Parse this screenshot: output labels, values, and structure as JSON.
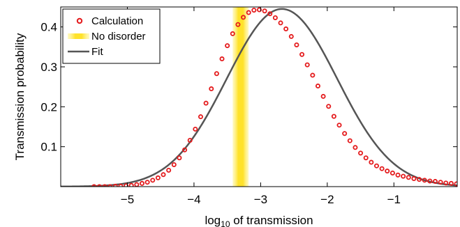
{
  "chart_data": {
    "type": "scatter",
    "xlabel_base": "log",
    "xlabel_sub": "10",
    "xlabel_rest": " of transmission",
    "ylabel": "Transmission probability",
    "xlim": [
      -6.0,
      -0.05
    ],
    "ylim": [
      0,
      0.45
    ],
    "xticks": [
      -5,
      -4,
      -3,
      -2,
      -1
    ],
    "xtick_labels": [
      "−5",
      "−4",
      "−3",
      "−2",
      "−1"
    ],
    "yticks": [
      0.1,
      0.2,
      0.3,
      0.4
    ],
    "ytick_labels": [
      "0.1",
      "0.2",
      "0.3",
      "0.4"
    ],
    "legend_position": "top-left",
    "legend": [
      "Calculation",
      "No disorder",
      "Fit"
    ],
    "no_disorder_band": {
      "x_center": -3.3,
      "x_halfwidth": 0.12
    },
    "fit": {
      "type": "gaussian",
      "amplitude": 0.445,
      "mean": -2.68,
      "sigma": 0.83
    },
    "calculation": {
      "x": [
        -5.5,
        -5.42,
        -5.34,
        -5.26,
        -5.18,
        -5.1,
        -5.02,
        -4.94,
        -4.86,
        -4.78,
        -4.7,
        -4.62,
        -4.54,
        -4.46,
        -4.38,
        -4.3,
        -4.22,
        -4.14,
        -4.06,
        -3.98,
        -3.9,
        -3.82,
        -3.74,
        -3.66,
        -3.58,
        -3.5,
        -3.42,
        -3.34,
        -3.26,
        -3.18,
        -3.1,
        -3.02,
        -2.94,
        -2.86,
        -2.78,
        -2.7,
        -2.62,
        -2.54,
        -2.46,
        -2.38,
        -2.3,
        -2.22,
        -2.14,
        -2.06,
        -1.98,
        -1.9,
        -1.82,
        -1.74,
        -1.66,
        -1.58,
        -1.5,
        -1.42,
        -1.34,
        -1.26,
        -1.18,
        -1.1,
        -1.02,
        -0.94,
        -0.86,
        -0.78,
        -0.7,
        -0.62,
        -0.54,
        -0.46,
        -0.38,
        -0.3,
        -0.22,
        -0.14,
        -0.06
      ],
      "y": [
        0.0,
        0.0,
        0.0,
        0.0,
        0.001,
        0.001,
        0.002,
        0.003,
        0.005,
        0.008,
        0.011,
        0.016,
        0.022,
        0.03,
        0.041,
        0.055,
        0.072,
        0.092,
        0.116,
        0.144,
        0.175,
        0.209,
        0.245,
        0.283,
        0.32,
        0.353,
        0.383,
        0.406,
        0.424,
        0.436,
        0.442,
        0.443,
        0.44,
        0.433,
        0.423,
        0.41,
        0.395,
        0.376,
        0.355,
        0.331,
        0.305,
        0.279,
        0.252,
        0.226,
        0.201,
        0.176,
        0.154,
        0.133,
        0.115,
        0.098,
        0.084,
        0.072,
        0.061,
        0.052,
        0.045,
        0.039,
        0.034,
        0.029,
        0.026,
        0.023,
        0.02,
        0.018,
        0.016,
        0.014,
        0.013,
        0.011,
        0.009,
        0.008,
        0.007
      ]
    }
  }
}
